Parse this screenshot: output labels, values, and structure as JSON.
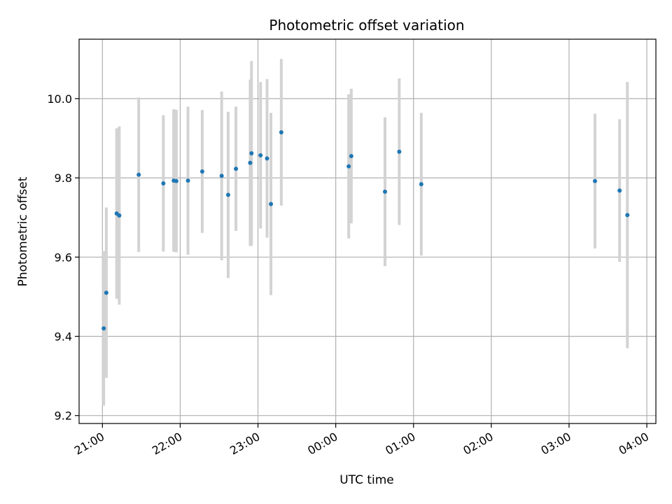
{
  "chart_data": {
    "type": "scatter",
    "title": "Photometric offset variation",
    "xlabel": "UTC time",
    "ylabel": "Photometric offset",
    "x_ticks": [
      "21:00",
      "22:00",
      "23:00",
      "00:00",
      "01:00",
      "02:00",
      "03:00",
      "04:00"
    ],
    "y_ticks": [
      "9.2",
      "9.4",
      "9.6",
      "9.8",
      "10.0"
    ],
    "x_axis": "time",
    "xlim": [
      "20:42",
      "04:07"
    ],
    "ylim": [
      9.18,
      10.15
    ],
    "grid": true,
    "colors": {
      "points": "#1f77b4",
      "errorbars": "#d3d3d3",
      "grid": "#b0b0b0"
    },
    "points": [
      {
        "t": "21:01",
        "y": 9.42,
        "err": 0.195
      },
      {
        "t": "21:03",
        "y": 9.51,
        "err": 0.215
      },
      {
        "t": "21:11",
        "y": 9.71,
        "err": 0.215
      },
      {
        "t": "21:13",
        "y": 9.705,
        "err": 0.225
      },
      {
        "t": "21:28",
        "y": 9.808,
        "err": 0.195
      },
      {
        "t": "21:47",
        "y": 9.786,
        "err": 0.172
      },
      {
        "t": "21:55",
        "y": 9.793,
        "err": 0.18
      },
      {
        "t": "21:57",
        "y": 9.792,
        "err": 0.18
      },
      {
        "t": "22:06",
        "y": 9.793,
        "err": 0.187
      },
      {
        "t": "22:17",
        "y": 9.816,
        "err": 0.155
      },
      {
        "t": "22:32",
        "y": 9.805,
        "err": 0.213
      },
      {
        "t": "22:37",
        "y": 9.757,
        "err": 0.21
      },
      {
        "t": "22:43",
        "y": 9.823,
        "err": 0.157
      },
      {
        "t": "22:54",
        "y": 9.838,
        "err": 0.21
      },
      {
        "t": "22:55",
        "y": 9.862,
        "err": 0.233
      },
      {
        "t": "23:02",
        "y": 9.857,
        "err": 0.185
      },
      {
        "t": "23:07",
        "y": 9.849,
        "err": 0.2
      },
      {
        "t": "23:10",
        "y": 9.734,
        "err": 0.23
      },
      {
        "t": "23:18",
        "y": 9.915,
        "err": 0.185
      },
      {
        "t": "00:10",
        "y": 9.829,
        "err": 0.182
      },
      {
        "t": "00:12",
        "y": 9.855,
        "err": 0.17
      },
      {
        "t": "00:38",
        "y": 9.765,
        "err": 0.188
      },
      {
        "t": "00:49",
        "y": 9.866,
        "err": 0.185
      },
      {
        "t": "01:06",
        "y": 9.784,
        "err": 0.18
      },
      {
        "t": "03:20",
        "y": 9.792,
        "err": 0.17
      },
      {
        "t": "03:39",
        "y": 9.768,
        "err": 0.18
      },
      {
        "t": "03:45",
        "y": 9.706,
        "err": 0.336
      }
    ]
  }
}
